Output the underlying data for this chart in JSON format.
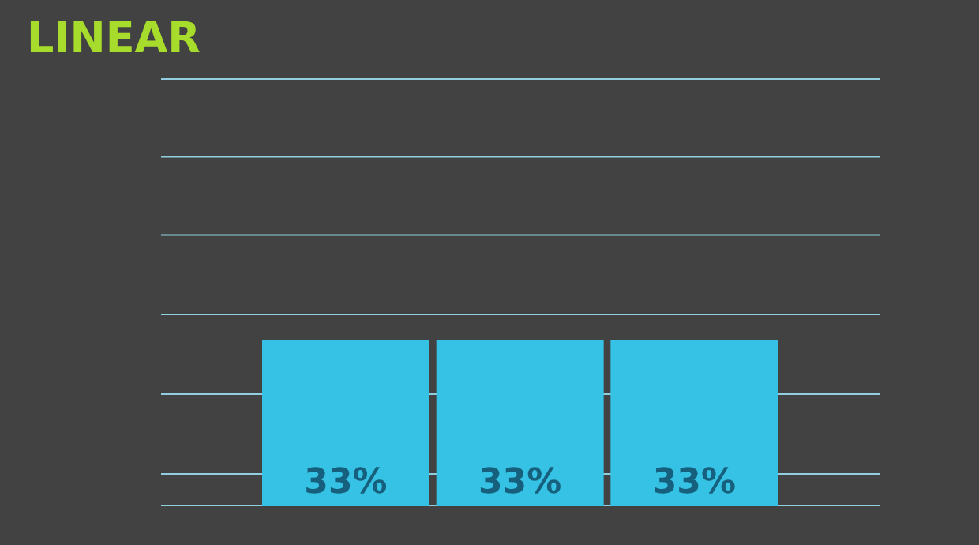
{
  "chart_data": {
    "type": "bar",
    "title": "LINEAR",
    "categories": [
      null,
      null,
      null
    ],
    "values": [
      33,
      33,
      33
    ],
    "value_labels": [
      "33%",
      "33%",
      "33%"
    ],
    "color": "#35c2e4",
    "ylim": [
      0,
      85
    ],
    "yticks": [
      {
        "value": 6.3,
        "label": null
      },
      {
        "value": 22.2,
        "label": null
      },
      {
        "value": 38.1,
        "label": null
      },
      {
        "value": 53.9,
        "label": null
      },
      {
        "value": 69.5,
        "label": null
      },
      {
        "value": 85,
        "label": null
      }
    ],
    "grid": "y"
  }
}
